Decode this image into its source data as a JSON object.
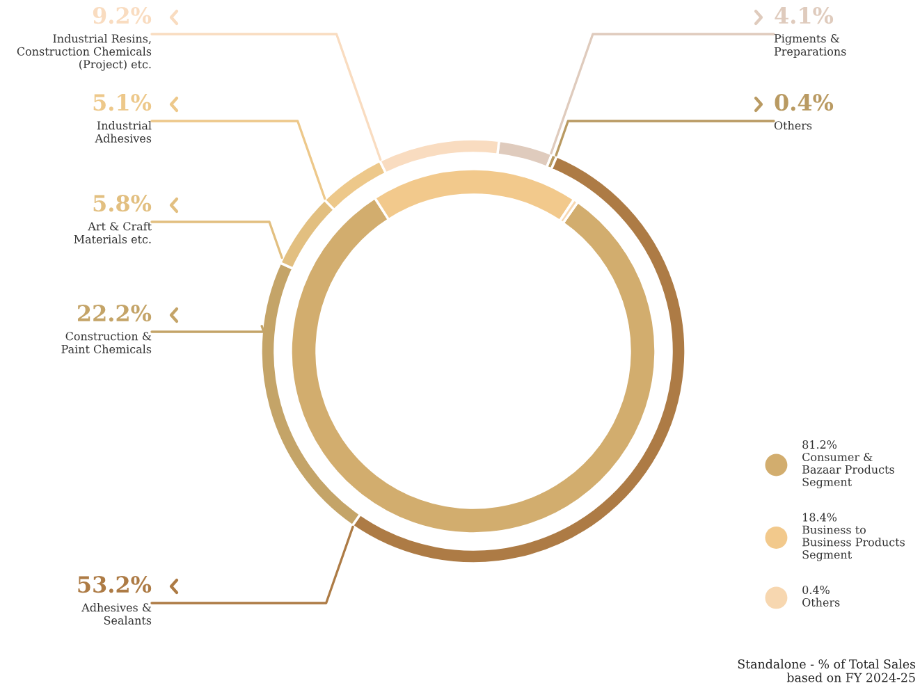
{
  "chart_data": {
    "type": "donut",
    "legend": "right",
    "categories": [
      "Pigments &\nPreparations",
      "Others",
      "Adhesives &\nSealants",
      "Construction &\nPaint Chemicals",
      "Art & Craft\nMaterials etc.",
      "Industrial\nAdhesives",
      "Industrial Resins,\nConstruction Chemicals\n(Project) etc.",
      "81.2%\nConsumer &\nBazaar Products\nSegment",
      "18.4%\nBusiness to\nBusiness Products\nSegment",
      "0.4%\nOthers"
    ],
    "colors": [
      "#dfcbbd",
      "#b99a62",
      "#ad7b45",
      "#c4a468",
      "#e2bf80",
      "#edc88a",
      "#f9dcc0",
      "#d2ad6e",
      "#f2c98c",
      "#f7d7b0"
    ],
    "series": [
      {
        "values": [
          4.1,
          0.4,
          53.2,
          22.2,
          5.8,
          5.1,
          9.2,
          null,
          null,
          null
        ],
        "value_labels": [
          "4.1%",
          "0.4%",
          "53.2%",
          "22.2%",
          "5.8%",
          "5.1%",
          "9.2%",
          null,
          null,
          null
        ]
      },
      {
        "values": [
          null,
          null,
          null,
          null,
          null,
          null,
          null,
          81.2,
          18.4,
          0.4
        ]
      }
    ],
    "annotations": [
      "Standalone - % of Total Sales\nbased on FY 2024-25"
    ]
  }
}
